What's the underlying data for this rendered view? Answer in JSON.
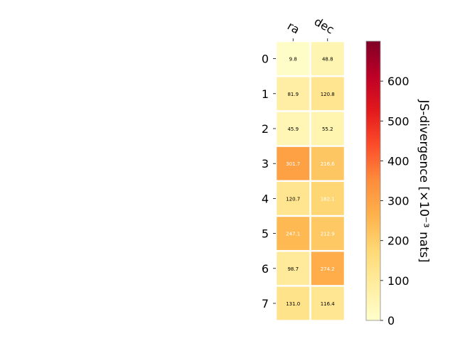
{
  "chart_data": {
    "type": "heatmap",
    "columns": [
      "ra",
      "dec"
    ],
    "rows": [
      "0",
      "1",
      "2",
      "3",
      "4",
      "5",
      "6",
      "7"
    ],
    "values": [
      [
        9.8,
        48.8
      ],
      [
        81.9,
        120.8
      ],
      [
        45.9,
        55.2
      ],
      [
        301.7,
        216.6
      ],
      [
        120.7,
        182.1
      ],
      [
        247.1,
        212.9
      ],
      [
        98.7,
        274.2
      ],
      [
        131.0,
        116.4
      ]
    ],
    "value_labels": [
      [
        "9.8",
        "48.8"
      ],
      [
        "81.9",
        "120.8"
      ],
      [
        "45.9",
        "55.2"
      ],
      [
        "301.7",
        "216.6"
      ],
      [
        "120.7",
        "182.1"
      ],
      [
        "247.1",
        "212.9"
      ],
      [
        "98.7",
        "274.2"
      ],
      [
        "131.0",
        "116.4"
      ]
    ],
    "colorbar": {
      "label": "JS-divergence [×10⁻³ nats]",
      "range": [
        0,
        700
      ],
      "ticks": [
        0,
        100,
        200,
        300,
        400,
        500,
        600
      ],
      "tick_labels": [
        "0",
        "100",
        "200",
        "300",
        "400",
        "500",
        "600"
      ],
      "colormap": "YlOrRd"
    },
    "grid": false,
    "x_ticks_position": "top"
  }
}
